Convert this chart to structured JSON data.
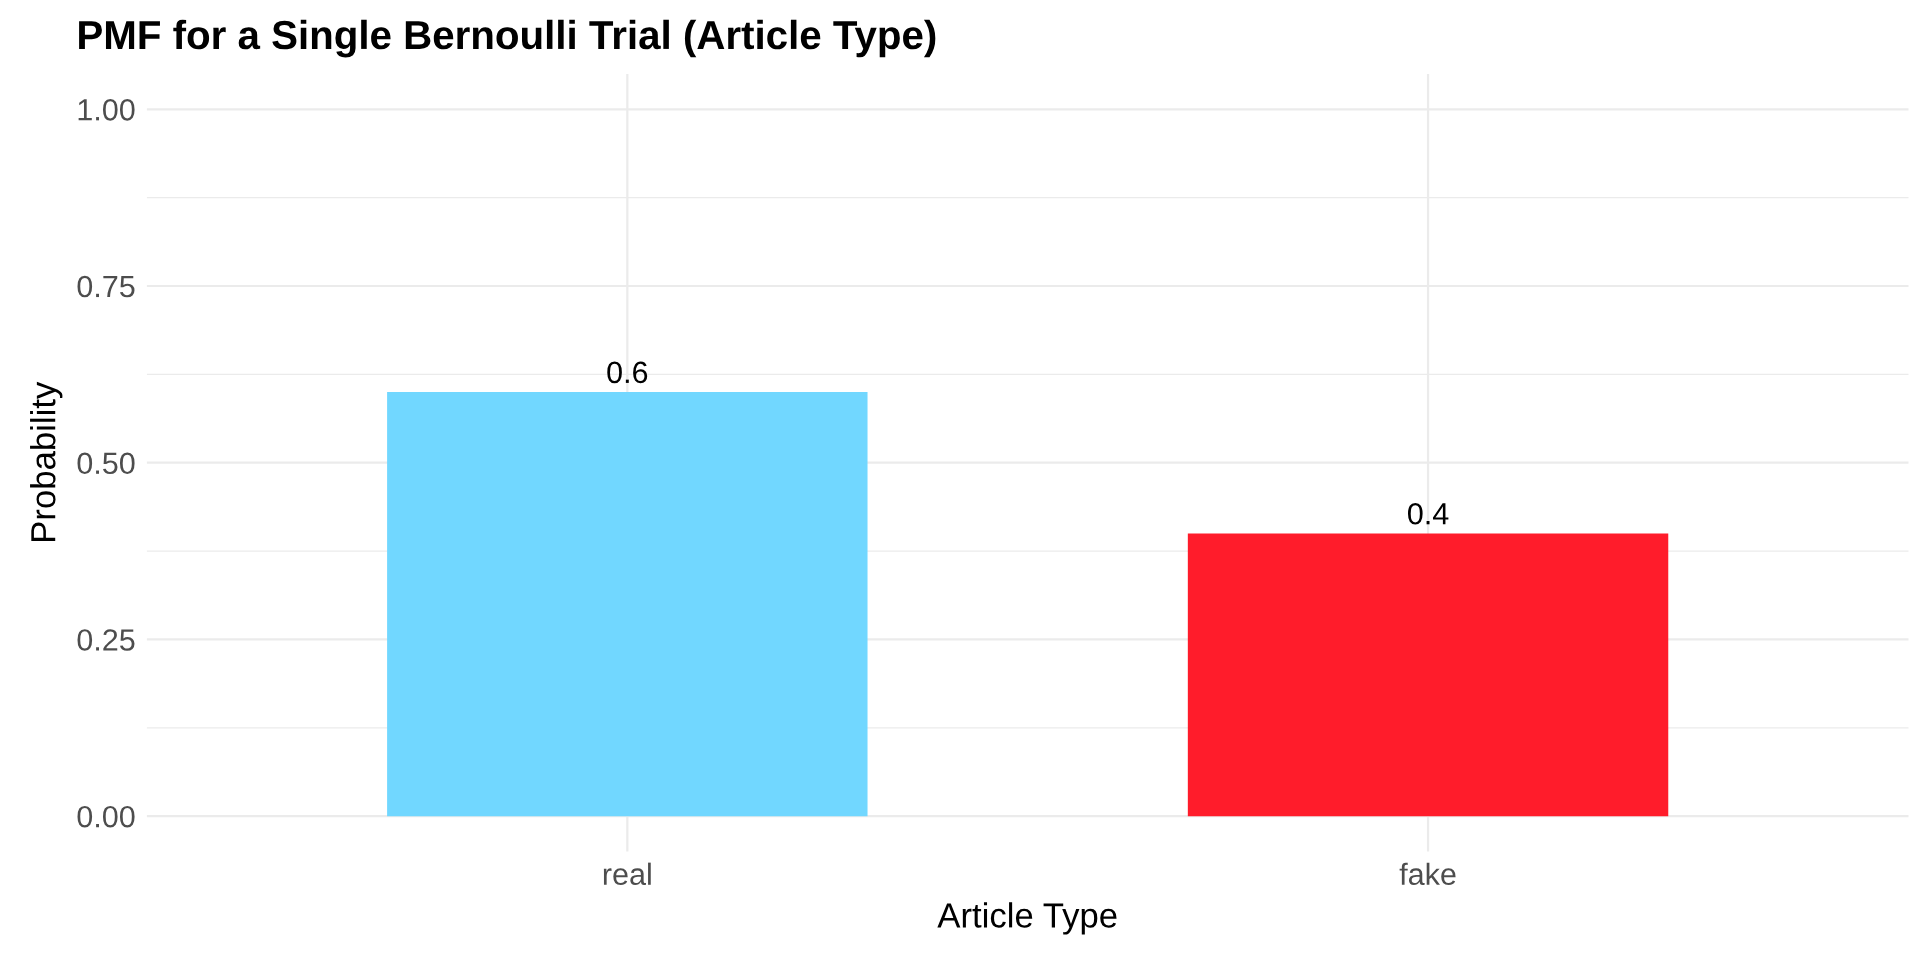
{
  "chart_data": {
    "type": "bar",
    "title": "PMF for a Single Bernoulli Trial (Article Type)",
    "xlabel": "Article Type",
    "ylabel": "Probability",
    "categories": [
      "real",
      "fake"
    ],
    "values": [
      0.6,
      0.4
    ],
    "colors": [
      "#71d7ff",
      "#ff1c2b"
    ],
    "ylim": [
      -0.05,
      1.05
    ],
    "yticks": [
      {
        "value": 0,
        "label": "0.00"
      },
      {
        "value": 0.25,
        "label": "0.25"
      },
      {
        "value": 0.5,
        "label": "0.50"
      },
      {
        "value": 0.75,
        "label": "0.75"
      },
      {
        "value": 1,
        "label": "1.00"
      }
    ],
    "grid": true,
    "data_labels": true
  }
}
